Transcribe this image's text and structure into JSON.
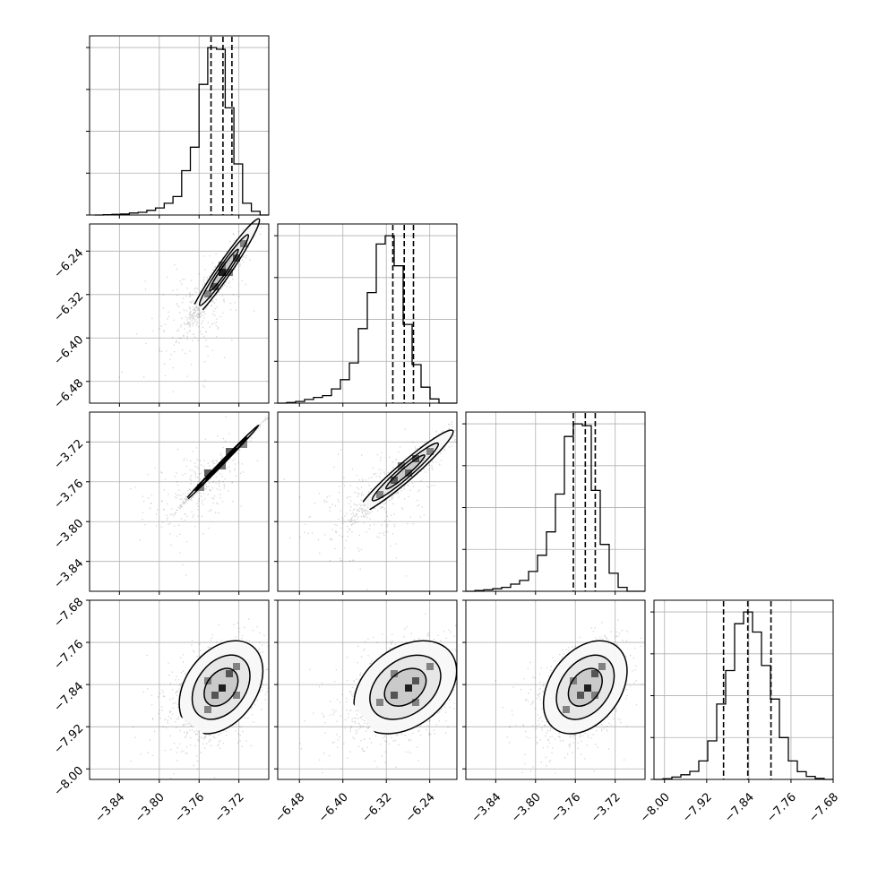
{
  "chart_data": {
    "type": "corner",
    "title": "",
    "grid": true,
    "parameters": [
      {
        "range": [
          -3.87,
          -3.69
        ],
        "ticks": [
          -3.84,
          -3.8,
          -3.76,
          -3.72
        ],
        "tick_labels": [
          "−3.84",
          "−3.80",
          "−3.76",
          "−3.72"
        ],
        "quantiles": [
          -3.748,
          -3.736,
          -3.727
        ],
        "histogram": {
          "bin_start": -3.865,
          "bin_width": 0.00875,
          "counts": [
            0,
            2,
            4,
            6,
            12,
            16,
            28,
            42,
            70,
            110,
            265,
            405,
            780,
            1000,
            990,
            640,
            305,
            70,
            22,
            0
          ]
        }
      },
      {
        "range": [
          -6.52,
          -6.19
        ],
        "ticks": [
          -6.48,
          -6.4,
          -6.32,
          -6.24
        ],
        "tick_labels": [
          "−6.48",
          "−6.40",
          "−6.32",
          "−6.24"
        ],
        "quantiles": [
          -6.308,
          -6.287,
          -6.27
        ],
        "histogram": {
          "bin_start": -6.52,
          "bin_width": 0.0165,
          "counts": [
            0,
            4,
            10,
            22,
            34,
            45,
            85,
            140,
            240,
            445,
            660,
            950,
            1000,
            820,
            470,
            230,
            95,
            25,
            0,
            0
          ]
        }
      },
      {
        "range": [
          -3.87,
          -3.69
        ],
        "ticks": [
          -3.84,
          -3.8,
          -3.76,
          -3.72
        ],
        "tick_labels": [
          "−3.84",
          "−3.80",
          "−3.76",
          "−3.72"
        ],
        "quantiles": [
          -3.762,
          -3.75,
          -3.74
        ],
        "histogram": {
          "bin_start": -3.87,
          "bin_width": 0.009,
          "counts": [
            0,
            4,
            8,
            14,
            22,
            40,
            60,
            110,
            200,
            330,
            540,
            860,
            930,
            920,
            560,
            260,
            100,
            22,
            0,
            0
          ]
        }
      },
      {
        "range": [
          -8.02,
          -7.68
        ],
        "ticks": [
          -8.0,
          -7.92,
          -7.84,
          -7.76,
          -7.68
        ],
        "tick_labels": [
          "−8.00",
          "−7.92",
          "−7.84",
          "−7.76",
          "−7.68"
        ],
        "quantiles": [
          -7.888,
          -7.842,
          -7.798
        ],
        "histogram": {
          "bin_start": -8.02,
          "bin_width": 0.017,
          "counts": [
            0,
            4,
            14,
            28,
            48,
            110,
            230,
            450,
            650,
            930,
            1000,
            880,
            680,
            480,
            250,
            110,
            46,
            18,
            6,
            0
          ]
        }
      }
    ],
    "pairs": [
      {
        "row": 1,
        "col": 0,
        "mean": [
          -3.735,
          -6.275
        ],
        "sd": [
          0.017,
          0.045
        ],
        "corr": 0.97,
        "tail_frac": 0.18
      },
      {
        "row": 2,
        "col": 0,
        "mean": [
          -3.738,
          -3.742
        ],
        "sd": [
          0.018,
          0.0185
        ],
        "corr": 0.998,
        "tail_frac": 0.18
      },
      {
        "row": 2,
        "col": 1,
        "mean": [
          -6.285,
          -3.75
        ],
        "sd": [
          0.042,
          0.02
        ],
        "corr": 0.96,
        "tail_frac": 0.22
      },
      {
        "row": 3,
        "col": 0,
        "mean": [
          -3.738,
          -7.845
        ],
        "sd": [
          0.02,
          0.042
        ],
        "corr": 0.35,
        "tail_frac": 0.12
      },
      {
        "row": 3,
        "col": 1,
        "mean": [
          -6.285,
          -7.845
        ],
        "sd": [
          0.045,
          0.042
        ],
        "corr": 0.35,
        "tail_frac": 0.12
      },
      {
        "row": 3,
        "col": 2,
        "mean": [
          -3.75,
          -7.845
        ],
        "sd": [
          0.02,
          0.042
        ],
        "corr": 0.35,
        "tail_frac": 0.12
      }
    ],
    "colors": {
      "grid": "#b0b0b0",
      "axes": "#000000",
      "points": "#000000",
      "contour": "#000000",
      "fill_light": "#f8f8f8",
      "fill_mid": "#e6e6e6",
      "fill_dark": "#c8c8c8",
      "core_pixels": [
        "#707070",
        "#404040",
        "#000000"
      ]
    }
  }
}
